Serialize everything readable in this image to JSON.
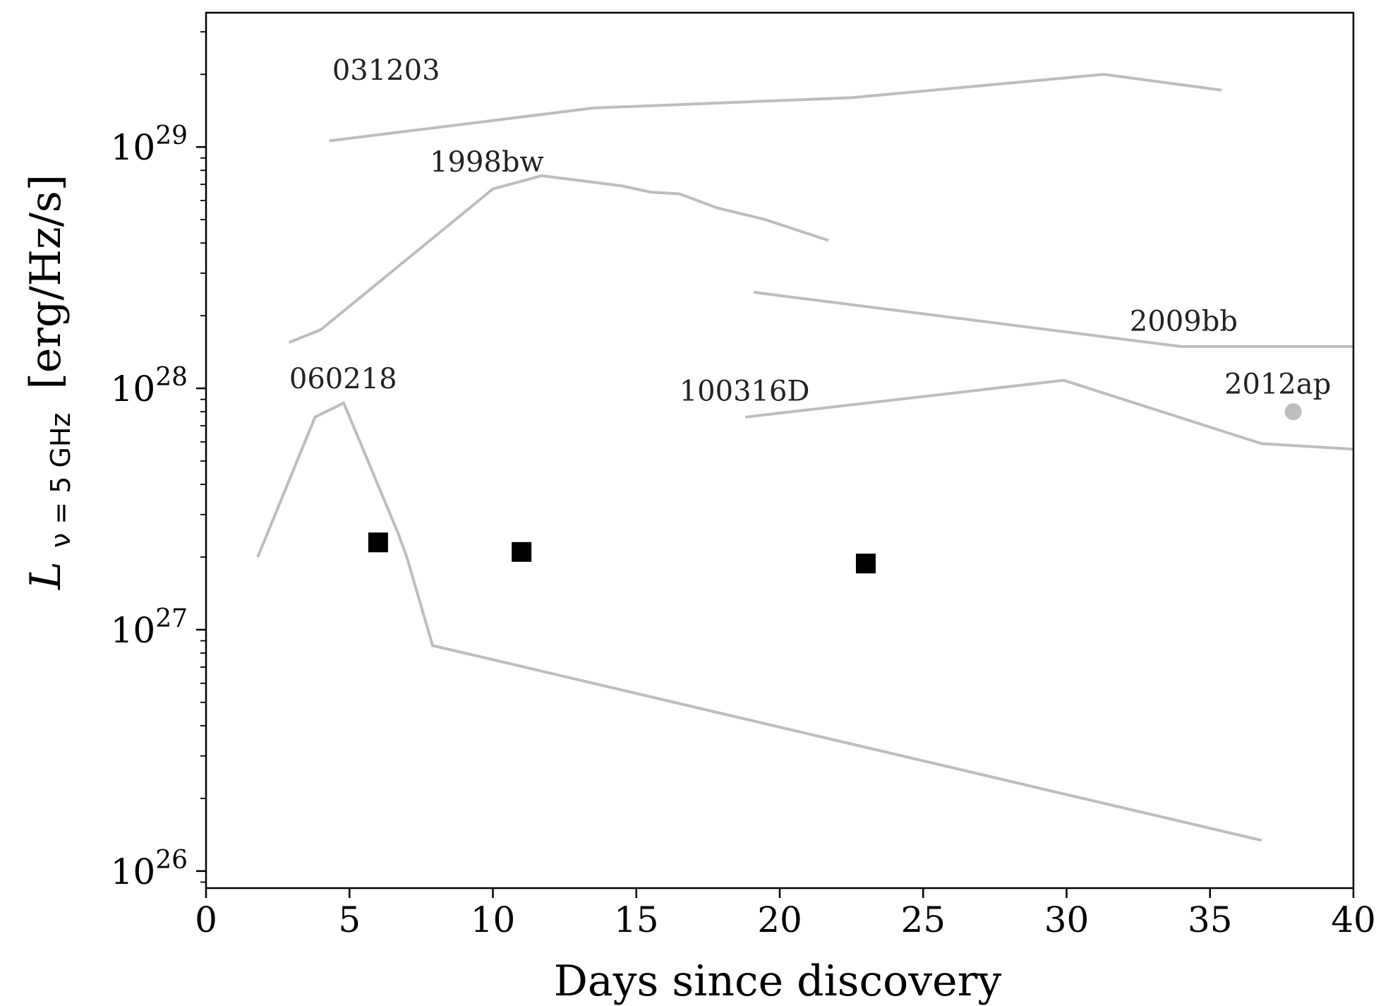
{
  "chart_data": {
    "type": "line",
    "xlabel": "Days since discovery",
    "ylabel": "[erg/Hz/s]",
    "ylabel_math": {
      "symbol": "L",
      "subscript": "ν = 5 GHz"
    },
    "xlim": [
      0,
      40
    ],
    "ylim": [
      8.5e+25,
      3.6e+29
    ],
    "yscale": "log",
    "grid": false,
    "x_ticks": [
      0,
      5,
      10,
      15,
      20,
      25,
      30,
      35,
      40
    ],
    "y_ticks": [
      {
        "value": 1e+26,
        "base": "10",
        "exp": "26"
      },
      {
        "value": 1e+27,
        "base": "10",
        "exp": "27"
      },
      {
        "value": 1e+28,
        "base": "10",
        "exp": "28"
      },
      {
        "value": 1e+29,
        "base": "10",
        "exp": "29"
      }
    ],
    "curve_color": "#bdbdbd",
    "series": [
      {
        "name": "031203",
        "label_at": [
          4.4,
          1.9e+29
        ],
        "points": [
          [
            4.3,
            1.06e+29
          ],
          [
            13.5,
            1.45e+29
          ],
          [
            22.5,
            1.6e+29
          ],
          [
            31.3,
            2e+29
          ],
          [
            35.4,
            1.72e+29
          ]
        ]
      },
      {
        "name": "1998bw",
        "label_at": [
          7.8,
          7.9e+28
        ],
        "points": [
          [
            2.9,
            1.55e+28
          ],
          [
            4.0,
            1.75e+28
          ],
          [
            10.0,
            6.7e+28
          ],
          [
            11.7,
            7.6e+28
          ],
          [
            14.5,
            6.9e+28
          ],
          [
            15.5,
            6.5e+28
          ],
          [
            16.5,
            6.4e+28
          ],
          [
            17.8,
            5.6e+28
          ],
          [
            19.5,
            5e+28
          ],
          [
            21.7,
            4.1e+28
          ]
        ]
      },
      {
        "name": "2009bb",
        "label_at": [
          32.2,
          1.73e+28
        ],
        "points": [
          [
            19.1,
            2.5e+28
          ],
          [
            34.0,
            1.49e+28
          ],
          [
            40,
            1.49e+28
          ]
        ]
      },
      {
        "name": "100316D",
        "label_at": [
          16.5,
          8.9e+27
        ],
        "points": [
          [
            18.8,
            7.6e+27
          ],
          [
            29.9,
            1.08e+28
          ],
          [
            36.8,
            5.9e+27
          ],
          [
            40,
            5.6e+27
          ]
        ]
      },
      {
        "name": "060218",
        "label_at": [
          2.9,
          1e+28
        ],
        "points": [
          [
            1.8,
            2e+27
          ],
          [
            3.8,
            7.6e+27
          ],
          [
            4.8,
            8.7e+27
          ],
          [
            6.7,
            2.5e+27
          ],
          [
            7.0,
            2e+27
          ],
          [
            7.9,
            8.6e+26
          ],
          [
            36.8,
            1.34e+26
          ]
        ]
      }
    ],
    "point_series": [
      {
        "name": "2012ap",
        "label_at": [
          35.5,
          9.5e+27
        ],
        "marker": "circle",
        "color": "#bdbdbd",
        "points": [
          [
            37.9,
            8e+27
          ]
        ]
      },
      {
        "name": "",
        "marker": "square",
        "color": "#000000",
        "points": [
          [
            6.0,
            2.3e+27
          ],
          [
            11.0,
            2.1e+27
          ],
          [
            23.0,
            1.88e+27
          ]
        ]
      }
    ]
  }
}
